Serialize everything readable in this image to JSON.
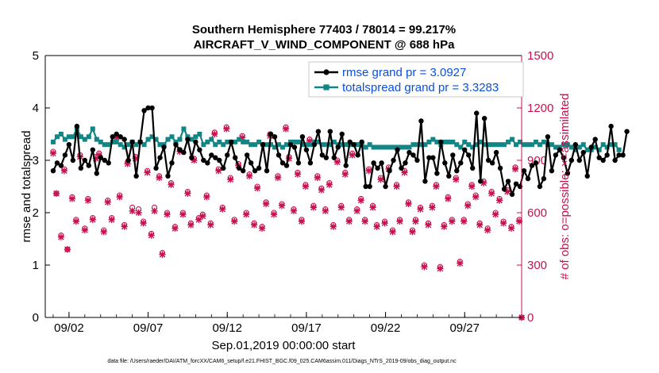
{
  "chart_data": {
    "type": "line",
    "title": "Southern Hemisphere 77403 / 78014 = 99.217%",
    "subtitle": "AIRCRAFT_V_WIND_COMPONENT @ 688 hPa",
    "xlabel": "Sep.01,2019 00:00:00 start",
    "ylabel": "rmse and totalspread",
    "ylabel_right": "# of obs: o=possible; ×=assimilated",
    "footnote": "data file: /Users/raeder/DAI/ATM_forcXX/CAM6_setup/f.e21.FHIST_BGC.f09_025.CAM6assim.011/Diags_NTrS_2019-09/obs_diag_output.nc",
    "xlim": [
      0.5,
      30.6
    ],
    "ylim": [
      0,
      5
    ],
    "ylim_right": [
      0,
      1500
    ],
    "x_ticks": [
      2,
      7,
      12,
      17,
      22,
      27
    ],
    "x_tick_labels": [
      "09/02",
      "09/07",
      "09/12",
      "09/17",
      "09/22",
      "09/27"
    ],
    "y_ticks": [
      0,
      1,
      2,
      3,
      4,
      5
    ],
    "y_ticks_right": [
      0,
      300,
      600,
      900,
      1200,
      1500
    ],
    "legend": {
      "location": "top-right",
      "entries": [
        "rmse grand pr = 3.0927",
        "totalspread grand pr = 3.3283"
      ]
    },
    "colors": {
      "rmse": "#000000",
      "spread": "#128585",
      "obs": "#c8104f"
    },
    "series": [
      {
        "name": "rmse grand pr = 3.0927",
        "x_start": 1.0,
        "x_step": 0.25,
        "values": [
          2.8,
          2.95,
          2.9,
          3.1,
          3.3,
          3.0,
          3.65,
          2.85,
          3.0,
          2.9,
          3.2,
          2.75,
          3.05,
          3.0,
          2.95,
          3.45,
          3.5,
          3.45,
          3.4,
          3.0,
          3.35,
          2.7,
          3.35,
          3.95,
          4.0,
          4.0,
          2.85,
          3.05,
          3.25,
          2.7,
          2.95,
          3.3,
          3.2,
          3.15,
          3.4,
          3.05,
          3.35,
          3.2,
          3.0,
          2.95,
          3.1,
          3.05,
          3.0,
          2.85,
          3.1,
          3.35,
          3.05,
          2.85,
          2.8,
          3.1,
          2.95,
          2.8,
          2.85,
          3.3,
          2.8,
          3.5,
          3.45,
          3.1,
          2.95,
          2.9,
          3.3,
          3.25,
          2.95,
          3.45,
          3.2,
          2.95,
          3.3,
          3.55,
          3.1,
          3.05,
          3.55,
          3.05,
          3.25,
          3.5,
          2.9,
          3.35,
          3.3,
          3.1,
          3.35,
          2.5,
          2.5,
          2.95,
          2.85,
          2.95,
          2.5,
          2.8,
          3.0,
          3.2,
          2.85,
          2.95,
          3.15,
          3.1,
          3.0,
          3.75,
          2.6,
          3.05,
          3.05,
          2.75,
          3.35,
          2.95,
          2.7,
          3.1,
          2.8,
          2.95,
          3.2,
          3.1,
          2.85,
          3.9,
          2.6,
          3.8,
          3.0,
          2.95,
          3.15,
          2.85,
          2.45,
          2.6,
          2.35,
          2.55,
          2.5,
          2.8,
          2.65,
          2.9,
          2.95,
          2.5,
          2.65,
          3.45,
          2.8,
          3.1,
          3.2,
          3.05,
          2.75,
          3.0,
          3.3,
          3.0,
          3.15,
          2.7,
          3.25,
          3.4,
          3.05,
          3.0,
          3.1,
          3.65,
          3.0,
          3.1,
          3.1,
          3.55
        ]
      },
      {
        "name": "totalspread grand pr = 3.3283",
        "x_start": 1.0,
        "x_step": 0.25,
        "values": [
          3.35,
          3.45,
          3.5,
          3.4,
          3.45,
          3.45,
          3.6,
          3.45,
          3.4,
          3.45,
          3.6,
          3.4,
          3.35,
          3.3,
          3.3,
          3.35,
          3.35,
          3.3,
          3.25,
          3.3,
          3.35,
          3.3,
          3.35,
          3.3,
          3.4,
          3.45,
          3.4,
          3.3,
          3.3,
          3.4,
          3.45,
          3.35,
          3.4,
          3.6,
          3.45,
          3.4,
          3.45,
          3.5,
          3.3,
          3.35,
          3.4,
          3.3,
          3.35,
          3.3,
          3.35,
          3.35,
          3.35,
          3.4,
          3.35,
          3.35,
          3.3,
          3.3,
          3.35,
          3.3,
          3.3,
          3.3,
          3.25,
          3.3,
          3.25,
          3.3,
          3.35,
          3.35,
          3.35,
          3.3,
          3.3,
          3.3,
          3.35,
          3.35,
          3.3,
          3.3,
          3.3,
          3.35,
          3.3,
          3.3,
          3.3,
          3.3,
          3.3,
          3.3,
          3.3,
          3.25,
          3.3,
          3.25,
          3.25,
          3.25,
          3.25,
          3.25,
          3.25,
          3.25,
          3.25,
          3.25,
          3.25,
          3.3,
          3.3,
          3.3,
          3.3,
          3.35,
          3.4,
          3.35,
          3.3,
          3.35,
          3.35,
          3.35,
          3.3,
          3.25,
          3.35,
          3.3,
          3.25,
          3.3,
          3.35,
          3.3,
          3.3,
          3.3,
          3.3,
          3.3,
          3.3,
          3.35,
          3.4,
          3.3,
          3.35,
          3.3,
          3.3,
          3.3,
          3.35,
          3.3,
          3.35,
          3.3,
          3.3,
          3.25,
          3.25,
          3.3,
          3.3,
          3.25,
          3.2,
          3.25,
          3.3,
          3.2,
          3.2,
          3.25,
          3.2,
          3.3,
          3.25,
          3.3,
          3.3,
          3.2
        ]
      }
    ],
    "obs_possible_x": [
      1.0,
      1.2,
      1.5,
      1.7,
      1.9,
      2.2,
      2.45,
      2.7,
      3.0,
      3.2,
      3.5,
      3.7,
      3.9,
      4.2,
      4.45,
      4.7,
      5.0,
      5.2,
      5.5,
      5.7,
      6.0,
      6.2,
      6.4,
      6.7,
      6.95,
      7.2,
      7.4,
      7.7,
      7.9,
      8.2,
      8.45,
      8.7,
      9.0,
      9.2,
      9.5,
      9.7,
      9.9,
      10.2,
      10.45,
      10.7,
      10.95,
      11.2,
      11.45,
      11.7,
      11.95,
      12.2,
      12.45,
      12.7,
      12.95,
      13.2,
      13.4,
      13.7,
      13.9,
      14.2,
      14.45,
      14.7,
      14.95,
      15.2,
      15.45,
      15.7,
      15.9,
      16.2,
      16.45,
      16.7,
      16.95,
      17.2,
      17.45,
      17.7,
      17.95,
      18.2,
      18.45,
      18.7,
      18.95,
      19.2,
      19.45,
      19.7,
      19.9,
      20.2,
      20.45,
      20.7,
      20.95,
      21.2,
      21.45,
      21.7,
      21.95,
      22.2,
      22.45,
      22.7,
      22.9,
      23.2,
      23.45,
      23.7,
      23.9,
      24.2,
      24.45,
      24.7,
      24.95,
      25.2,
      25.45,
      25.7,
      25.95,
      26.2,
      26.45,
      26.7,
      26.95,
      27.2,
      27.45,
      27.7,
      27.95,
      28.2,
      28.45,
      28.7,
      28.95,
      29.2,
      29.45,
      29.7,
      29.95,
      30.2,
      30.45,
      30.6
    ],
    "obs_possible": [
      950,
      710,
      470,
      850,
      390,
      690,
      560,
      930,
      510,
      680,
      570,
      920,
      940,
      500,
      670,
      570,
      1040,
      700,
      530,
      890,
      630,
      920,
      620,
      550,
      840,
      480,
      630,
      810,
      370,
      600,
      770,
      520,
      960,
      600,
      720,
      540,
      910,
      570,
      590,
      700,
      540,
      1060,
      850,
      630,
      1090,
      800,
      560,
      880,
      1040,
      600,
      820,
      540,
      750,
      520,
      660,
      1050,
      600,
      810,
      650,
      1090,
      920,
      620,
      830,
      560,
      760,
      1020,
      640,
      810,
      740,
      620,
      770,
      530,
      900,
      640,
      830,
      560,
      940,
      620,
      680,
      560,
      850,
      640,
      530,
      800,
      550,
      860,
      500,
      760,
      560,
      840,
      660,
      500,
      560,
      630,
      300,
      540,
      640,
      760,
      290,
      530,
      690,
      560,
      800,
      320,
      560,
      650,
      760,
      700,
      540,
      780,
      510,
      720,
      600,
      680,
      550,
      730,
      520,
      860,
      560,
      0
    ],
    "obs_assimilated_x": [
      1.0,
      1.2,
      1.5,
      1.7,
      1.9,
      2.2,
      2.45,
      2.7,
      3.0,
      3.2,
      3.5,
      3.7,
      3.9,
      4.2,
      4.45,
      4.7,
      5.0,
      5.2,
      5.5,
      5.7,
      6.0,
      6.2,
      6.4,
      6.7,
      6.95,
      7.2,
      7.4,
      7.7,
      7.9,
      8.2,
      8.45,
      8.7,
      9.0,
      9.2,
      9.5,
      9.7,
      9.9,
      10.2,
      10.45,
      10.7,
      10.95,
      11.2,
      11.45,
      11.7,
      11.95,
      12.2,
      12.45,
      12.7,
      12.95,
      13.2,
      13.4,
      13.7,
      13.9,
      14.2,
      14.45,
      14.7,
      14.95,
      15.2,
      15.45,
      15.7,
      15.9,
      16.2,
      16.45,
      16.7,
      16.95,
      17.2,
      17.45,
      17.7,
      17.95,
      18.2,
      18.45,
      18.7,
      18.95,
      19.2,
      19.45,
      19.7,
      19.9,
      20.2,
      20.45,
      20.7,
      20.95,
      21.2,
      21.45,
      21.7,
      21.95,
      22.2,
      22.45,
      22.7,
      22.9,
      23.2,
      23.45,
      23.7,
      23.9,
      24.2,
      24.45,
      24.7,
      24.95,
      25.2,
      25.45,
      25.7,
      25.95,
      26.2,
      26.45,
      26.7,
      26.95,
      27.2,
      27.45,
      27.7,
      27.95,
      28.2,
      28.45,
      28.7,
      28.95,
      29.2,
      29.45,
      29.7,
      29.95,
      30.2,
      30.45,
      30.6
    ],
    "obs_assimilated": [
      940,
      710,
      460,
      840,
      390,
      680,
      550,
      920,
      500,
      670,
      560,
      910,
      930,
      490,
      660,
      560,
      1030,
      690,
      520,
      880,
      610,
      910,
      600,
      540,
      830,
      470,
      610,
      800,
      360,
      590,
      760,
      510,
      950,
      590,
      710,
      530,
      900,
      560,
      580,
      690,
      530,
      1050,
      840,
      620,
      1080,
      790,
      550,
      870,
      1030,
      590,
      810,
      530,
      740,
      510,
      650,
      1040,
      590,
      800,
      640,
      1080,
      910,
      610,
      820,
      550,
      750,
      1010,
      630,
      800,
      730,
      610,
      760,
      520,
      890,
      630,
      820,
      550,
      930,
      610,
      670,
      550,
      840,
      630,
      520,
      790,
      540,
      850,
      490,
      750,
      550,
      830,
      650,
      490,
      550,
      620,
      290,
      530,
      630,
      750,
      280,
      520,
      680,
      550,
      790,
      310,
      550,
      640,
      750,
      690,
      530,
      770,
      500,
      710,
      590,
      670,
      540,
      720,
      510,
      850,
      550,
      0
    ]
  }
}
